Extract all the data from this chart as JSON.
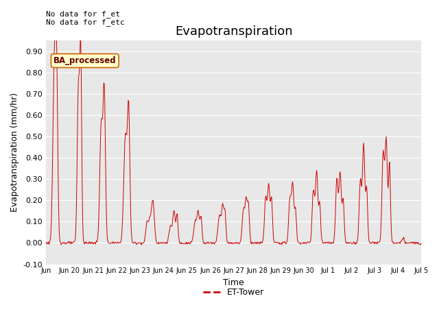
{
  "title": "Evapotranspiration",
  "ylabel": "Evapotranspiration (mm/hr)",
  "xlabel": "Time",
  "top_left_text": "No data for f_et\nNo data for f_etc",
  "legend_label": "ET-Tower",
  "legend_box_label": "BA_processed",
  "ylim": [
    -0.1,
    0.95
  ],
  "yticks": [
    -0.1,
    0.0,
    0.1,
    0.2,
    0.3,
    0.4,
    0.5,
    0.6,
    0.7,
    0.8,
    0.9
  ],
  "bg_color": "#e8e8e8",
  "line_color": "#cc0000",
  "legend_box_color": "#ffffcc",
  "legend_box_border": "#cc6600",
  "title_fontsize": 13,
  "label_fontsize": 9,
  "tick_fontsize": 8,
  "n_days": 16,
  "tick_labels": [
    "Jun",
    "Jun 20",
    "Jun 21",
    "Jun 22",
    "Jun 23",
    "Jun 24",
    "Jun 25",
    "Jun 26",
    "Jun 27",
    "Jun 28",
    "Jun 29",
    "Jun 30",
    "Jul 1",
    "Jul 2",
    "Jul 3",
    "Jul 4",
    "Jul 5"
  ]
}
